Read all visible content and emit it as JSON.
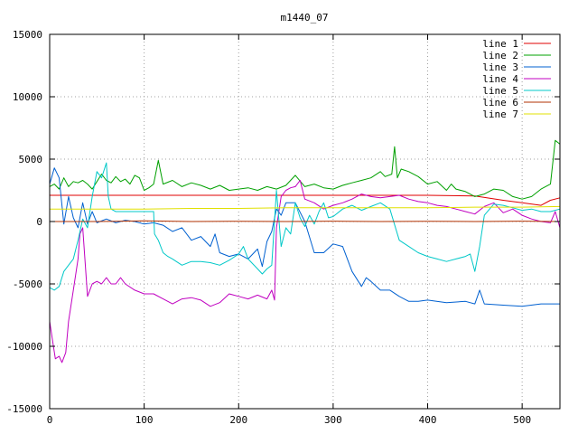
{
  "chart_data": {
    "type": "line",
    "title": "m1440_07",
    "xlabel": "",
    "ylabel": "",
    "xlim": [
      0,
      540
    ],
    "ylim": [
      -15000,
      15000
    ],
    "xticks": [
      0,
      100,
      200,
      300,
      400,
      500
    ],
    "yticks": [
      -15000,
      -10000,
      -5000,
      0,
      5000,
      10000,
      15000
    ],
    "xtick_labels": [
      "0",
      "100",
      "200",
      "300",
      "400",
      "500"
    ],
    "ytick_labels": [
      "-15000",
      "-10000",
      "-5000",
      "0",
      "5000",
      "10000",
      "15000"
    ],
    "grid": true,
    "legend_position": "top-right",
    "series": [
      {
        "name": "line 1",
        "color": "#e00000",
        "x": [
          0,
          10,
          100,
          200,
          300,
          400,
          450,
          480,
          500,
          520,
          530,
          540
        ],
        "y": [
          2100,
          2100,
          2100,
          2100,
          2100,
          2100,
          2050,
          1700,
          1500,
          1300,
          1700,
          1900
        ]
      },
      {
        "name": "line 2",
        "color": "#00a000",
        "x": [
          0,
          5,
          10,
          15,
          20,
          25,
          30,
          35,
          40,
          45,
          50,
          55,
          60,
          65,
          70,
          75,
          80,
          85,
          90,
          95,
          100,
          105,
          110,
          115,
          120,
          130,
          140,
          150,
          160,
          170,
          180,
          190,
          200,
          210,
          220,
          230,
          240,
          250,
          260,
          270,
          280,
          290,
          300,
          310,
          320,
          330,
          340,
          350,
          355,
          362,
          365,
          368,
          372,
          380,
          390,
          400,
          410,
          420,
          425,
          430,
          440,
          450,
          460,
          470,
          480,
          490,
          500,
          510,
          520,
          530,
          535,
          540
        ],
        "y": [
          2800,
          3000,
          2600,
          3500,
          2800,
          3200,
          3100,
          3300,
          3000,
          2600,
          3200,
          3800,
          3300,
          3100,
          3600,
          3200,
          3400,
          3000,
          3700,
          3500,
          2500,
          2700,
          3000,
          4900,
          3000,
          3300,
          2800,
          3100,
          2900,
          2600,
          2900,
          2500,
          2600,
          2700,
          2500,
          2800,
          2600,
          2900,
          3700,
          2800,
          3000,
          2700,
          2600,
          2900,
          3100,
          3300,
          3500,
          4000,
          3600,
          3800,
          6000,
          3500,
          4200,
          4000,
          3600,
          3000,
          3200,
          2500,
          3000,
          2600,
          2400,
          2000,
          2200,
          2600,
          2500,
          2000,
          1800,
          2000,
          2600,
          3000,
          6500,
          6200
        ]
      },
      {
        "name": "line 3",
        "color": "#0060d0",
        "x": [
          0,
          5,
          10,
          15,
          20,
          25,
          30,
          35,
          40,
          45,
          50,
          60,
          70,
          80,
          90,
          100,
          110,
          120,
          130,
          140,
          150,
          160,
          170,
          175,
          180,
          190,
          200,
          210,
          220,
          225,
          230,
          235,
          240,
          245,
          250,
          260,
          270,
          280,
          290,
          300,
          310,
          320,
          330,
          335,
          340,
          350,
          360,
          370,
          380,
          390,
          400,
          420,
          440,
          450,
          455,
          460,
          480,
          500,
          520,
          540
        ],
        "y": [
          3000,
          4300,
          3500,
          -200,
          2000,
          300,
          -500,
          1500,
          -200,
          800,
          -100,
          200,
          -100,
          100,
          0,
          -200,
          -100,
          -300,
          -800,
          -500,
          -1500,
          -1200,
          -2000,
          -1000,
          -2500,
          -2800,
          -2600,
          -3000,
          -2200,
          -3600,
          -1600,
          -800,
          1000,
          500,
          1500,
          1500,
          0,
          -2500,
          -2500,
          -1800,
          -2000,
          -4000,
          -5200,
          -4500,
          -4800,
          -5500,
          -5500,
          -6000,
          -6400,
          -6400,
          -6300,
          -6500,
          -6400,
          -6600,
          -5500,
          -6600,
          -6700,
          -6800,
          -6600,
          -6600
        ]
      },
      {
        "name": "line 4",
        "color": "#c000c0",
        "x": [
          0,
          3,
          6,
          10,
          13,
          17,
          20,
          25,
          30,
          32,
          35,
          40,
          45,
          50,
          55,
          60,
          65,
          70,
          75,
          80,
          90,
          100,
          110,
          120,
          130,
          140,
          150,
          160,
          170,
          180,
          190,
          200,
          210,
          220,
          230,
          235,
          238,
          240,
          245,
          250,
          255,
          260,
          265,
          270,
          280,
          290,
          300,
          310,
          320,
          330,
          340,
          350,
          360,
          370,
          380,
          390,
          400,
          410,
          420,
          430,
          440,
          450,
          460,
          470,
          480,
          490,
          500,
          510,
          520,
          530,
          535,
          540
        ],
        "y": [
          -8000,
          -9500,
          -11000,
          -10800,
          -11300,
          -10500,
          -8000,
          -5500,
          -3000,
          -1000,
          -500,
          -6000,
          -5000,
          -4800,
          -5000,
          -4500,
          -5000,
          -5000,
          -4500,
          -5000,
          -5500,
          -5800,
          -5800,
          -6200,
          -6600,
          -6200,
          -6100,
          -6300,
          -6800,
          -6500,
          -5800,
          -6000,
          -6200,
          -5900,
          -6200,
          -5500,
          -6300,
          -500,
          2000,
          2500,
          2700,
          2800,
          3300,
          1800,
          1500,
          1000,
          1300,
          1500,
          1800,
          2200,
          2000,
          1900,
          2000,
          2100,
          1800,
          1600,
          1500,
          1300,
          1200,
          1000,
          800,
          600,
          1200,
          1500,
          700,
          1000,
          500,
          200,
          0,
          -100,
          800,
          -500
        ]
      },
      {
        "name": "line 5",
        "color": "#00c8c8",
        "x": [
          0,
          5,
          10,
          15,
          20,
          25,
          30,
          35,
          40,
          45,
          50,
          55,
          60,
          62,
          65,
          70,
          80,
          90,
          100,
          110,
          111,
          115,
          120,
          125,
          130,
          140,
          150,
          160,
          170,
          180,
          190,
          200,
          205,
          210,
          220,
          225,
          230,
          235,
          240,
          245,
          250,
          255,
          260,
          265,
          270,
          275,
          280,
          285,
          290,
          295,
          300,
          310,
          320,
          330,
          340,
          350,
          360,
          370,
          380,
          390,
          400,
          410,
          420,
          430,
          440,
          445,
          450,
          455,
          460,
          470,
          480,
          490,
          500,
          510,
          520,
          530,
          540
        ],
        "y": [
          -5300,
          -5500,
          -5200,
          -4000,
          -3500,
          -3000,
          -1500,
          200,
          -500,
          2000,
          4000,
          3500,
          4700,
          2000,
          1000,
          800,
          800,
          800,
          800,
          800,
          -1000,
          -1500,
          -2500,
          -2800,
          -3000,
          -3500,
          -3200,
          -3200,
          -3300,
          -3500,
          -3100,
          -2600,
          -2000,
          -3000,
          -3800,
          -4200,
          -3800,
          -3500,
          2500,
          -2000,
          -500,
          -1000,
          1500,
          300,
          -400,
          500,
          -200,
          800,
          1500,
          300,
          400,
          1000,
          1300,
          900,
          1200,
          1500,
          1000,
          -1500,
          -2000,
          -2500,
          -2800,
          -3000,
          -3200,
          -3000,
          -2800,
          -2600,
          -4000,
          -2000,
          500,
          1400,
          1300,
          1100,
          900,
          1000,
          800,
          800,
          1000
        ]
      },
      {
        "name": "line 6",
        "color": "#b03000",
        "x": [
          0,
          50,
          100,
          150,
          200,
          250,
          300,
          350,
          400,
          450,
          500,
          540
        ],
        "y": [
          0,
          0,
          50,
          0,
          20,
          0,
          30,
          0,
          20,
          0,
          30,
          0
        ]
      },
      {
        "name": "line 7",
        "color": "#e0e000",
        "x": [
          0,
          50,
          100,
          150,
          200,
          250,
          300,
          350,
          400,
          450,
          500,
          540
        ],
        "y": [
          1000,
          1000,
          1000,
          1050,
          1050,
          1100,
          1100,
          1100,
          1100,
          1150,
          1150,
          1200
        ]
      }
    ]
  }
}
